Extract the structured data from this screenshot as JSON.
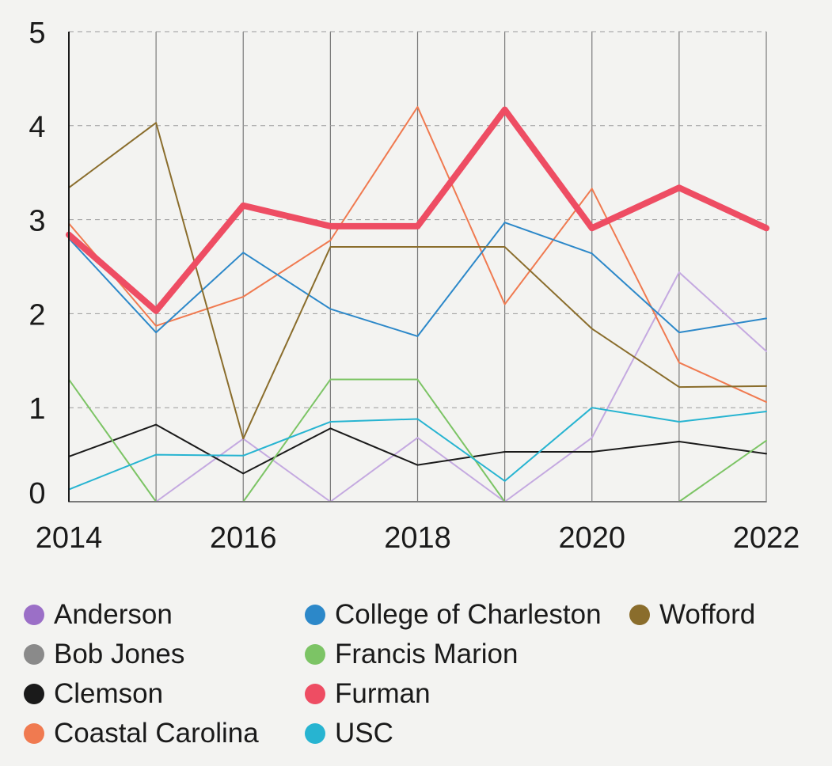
{
  "chart_data": {
    "type": "line",
    "title": "",
    "xlabel": "",
    "ylabel": "",
    "x": [
      2014,
      2015,
      2016,
      2017,
      2018,
      2019,
      2020,
      2021,
      2022
    ],
    "xlim": [
      2014,
      2022
    ],
    "ylim": [
      0,
      5
    ],
    "x_ticks": [
      "2014",
      "2016",
      "2018",
      "2020",
      "2022"
    ],
    "y_ticks": [
      "0",
      "1",
      "2",
      "3",
      "4",
      "5"
    ],
    "grid": "horizontal dashed, vertical solid",
    "legend_position": "bottom",
    "series": [
      {
        "name": "Anderson",
        "color": "#c4a9e0",
        "legend_color": "#9b6fc7",
        "width": 2,
        "values": [
          0,
          0,
          0.67,
          0,
          0.68,
          0,
          0.68,
          2.44,
          1.6
        ]
      },
      {
        "name": "Bob Jones",
        "color": "#8a8a8a",
        "legend_color": "#8a8a8a",
        "width": 2,
        "values": [
          0,
          0,
          0,
          0,
          0,
          0,
          0,
          0,
          0
        ]
      },
      {
        "name": "Clemson",
        "color": "#1a1a1a",
        "legend_color": "#1a1a1a",
        "width": 2,
        "values": [
          0.48,
          0.82,
          0.3,
          0.78,
          0.39,
          0.53,
          0.53,
          0.64,
          0.51
        ]
      },
      {
        "name": "Coastal Carolina",
        "color": "#f07a50",
        "legend_color": "#f07a50",
        "width": 2,
        "values": [
          2.96,
          1.87,
          2.18,
          2.78,
          4.2,
          2.1,
          3.33,
          1.48,
          1.06
        ]
      },
      {
        "name": "College of Charleston",
        "color": "#2c88c9",
        "legend_color": "#2c88c9",
        "width": 2,
        "values": [
          2.8,
          1.8,
          2.65,
          2.05,
          1.76,
          2.97,
          2.64,
          1.8,
          1.95
        ]
      },
      {
        "name": "Francis Marion",
        "color": "#7cc465",
        "legend_color": "#7cc465",
        "width": 2,
        "values": [
          1.3,
          0,
          0,
          1.3,
          1.3,
          0,
          0,
          0,
          0.65
        ]
      },
      {
        "name": "Furman",
        "color": "#ee4d63",
        "legend_color": "#ee4d63",
        "width": 8,
        "values": [
          2.84,
          2.03,
          3.15,
          2.93,
          2.93,
          4.17,
          2.91,
          3.34,
          2.91
        ]
      },
      {
        "name": "USC",
        "color": "#27b4d1",
        "legend_color": "#27b4d1",
        "width": 2,
        "values": [
          0.13,
          0.5,
          0.49,
          0.85,
          0.88,
          0.22,
          1.0,
          0.85,
          0.96
        ]
      },
      {
        "name": "Wofford",
        "color": "#8a6d2c",
        "legend_color": "#8a6d2c",
        "width": 2,
        "values": [
          3.34,
          4.03,
          0.67,
          2.71,
          2.71,
          2.71,
          1.84,
          1.22,
          1.23
        ]
      }
    ]
  }
}
